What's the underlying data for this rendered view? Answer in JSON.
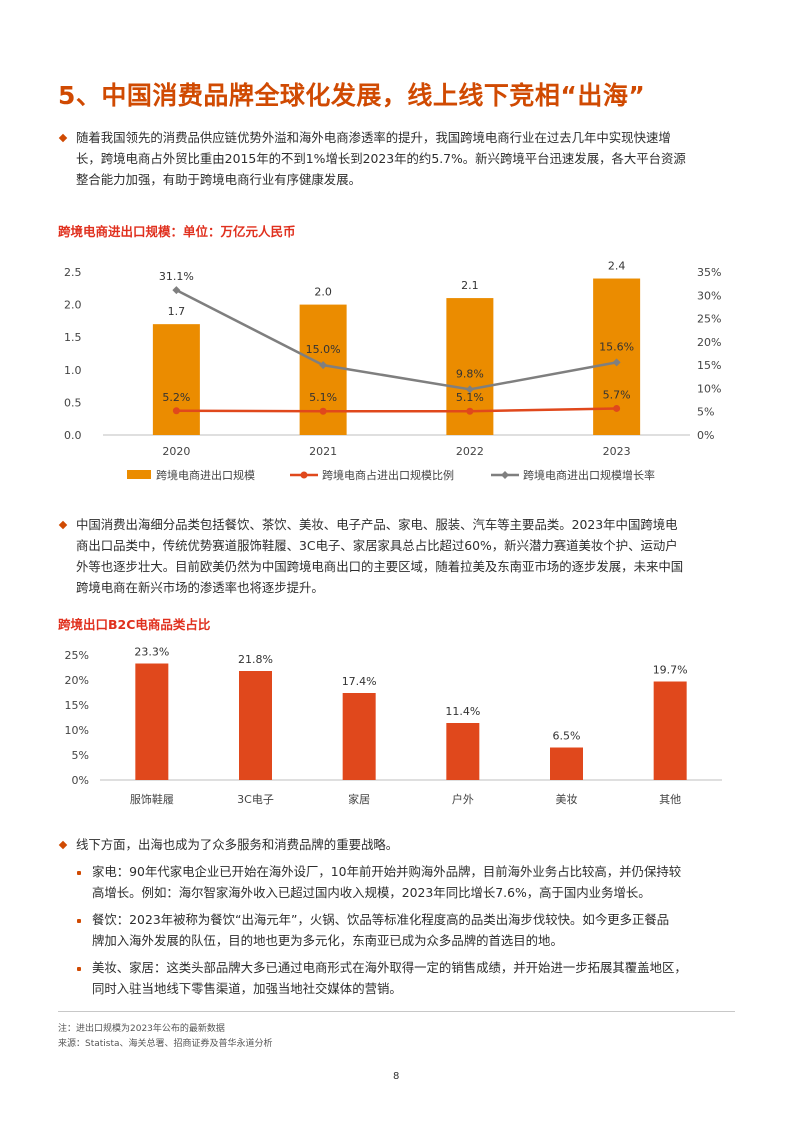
{
  "page": {
    "title": "5、中国消费品牌全球化发展，线上线下竞相“出海”",
    "page_number": "8"
  },
  "intro": {
    "lines": [
      "随着我国领先的消费品供应链优势外溢和海外电商渗透率的提升，我国跨境电商行业在过去几年中实现快速增",
      "长，跨境电商占外贸比重由2015年的不到1%增长到2023年的约5.7%。新兴跨境平台迅速发展，各大平台资源",
      "整合能力加强，有助于跨境电商行业有序健康发展。"
    ]
  },
  "chart1": {
    "title": "跨境电商进出口规模：单位：万亿元人民币"
  },
  "mid_paragraph": {
    "lines": [
      "中国消费出海细分品类包括餐饮、茶饮、美妆、电子产品、家电、服装、汽车等主要品类。2023年中国跨境电",
      "商出口品类中，传统优势赛道服饰鞋履、3C电子、家居家具总占比超过60%，新兴潜力赛道美妆个护、运动户",
      "外等也逐步壮大。目前欧美仍然为中国跨境电商出口的主要区域，随着拉美及东南亚市场的逐步发展，未来中国",
      "跨境电商在新兴市场的渗透率也将逐步提升。"
    ]
  },
  "chart2": {
    "title": "跨境出口B2C电商品类占比"
  },
  "offline": {
    "lead": "线下方面，出海也成为了众多服务和消费品牌的重要战略。",
    "items": [
      {
        "lines": [
          "家电：90年代家电企业已开始在海外设厂，10年前开始并购海外品牌，目前海外业务占比较高，并仍保持较",
          "高增长。例如：海尔智家海外收入已超过国内收入规模，2023年同比增长7.6%，高于国内业务增长。"
        ]
      },
      {
        "lines": [
          "餐饮：2023年被称为餐饮“出海元年”，火锅、饮品等标准化程度高的品类出海步伐较快。如今更多正餐品",
          "牌加入海外发展的队伍，目的地也更为多元化，东南亚已成为众多品牌的首选目的地。"
        ]
      },
      {
        "lines": [
          "美妆、家居：这类头部品牌大多已通过电商形式在海外取得一定的销售成绩，并开始进一步拓展其覆盖地区，",
          "同时入驻当地线下零售渠道，加强当地社交媒体的营销。"
        ]
      }
    ]
  },
  "footnotes": {
    "note": "注：进出口规模为2023年公布的最新数据",
    "source": "来源：Statista、海关总署、招商证券及普华永道分析"
  },
  "colors": {
    "accent": "#d04a02",
    "bar": "#eb8c00",
    "line_share": "#e0481c",
    "line_growth": "#7f7f7f"
  },
  "chart_data": [
    {
      "type": "bar",
      "categories": [
        "2020",
        "2021",
        "2022",
        "2023"
      ],
      "series": [
        {
          "name": "跨境电商进出口规模",
          "kind": "bar",
          "axis": "left",
          "values": [
            1.7,
            2.0,
            2.1,
            2.4
          ],
          "labels": [
            "1.7",
            "2.0",
            "2.1",
            "2.4"
          ]
        },
        {
          "name": "跨境电商占进出口规模比例",
          "kind": "line",
          "axis": "right",
          "values": [
            5.2,
            5.1,
            5.1,
            5.7
          ],
          "labels": [
            "5.2%",
            "5.1%",
            "5.1%",
            "5.7%"
          ]
        },
        {
          "name": "跨境电商进出口规模增长率",
          "kind": "line",
          "axis": "right",
          "values": [
            31.1,
            15.0,
            9.8,
            15.6
          ],
          "labels": [
            "31.1%",
            "15.0%",
            "9.8%",
            "15.6%"
          ]
        }
      ],
      "ylim": [
        0,
        2.5
      ],
      "yticks": [
        "0.0",
        "0.5",
        "1.0",
        "1.5",
        "2.0",
        "2.5"
      ],
      "y2lim": [
        0,
        35
      ],
      "y2ticks": [
        "0%",
        "5%",
        "10%",
        "15%",
        "20%",
        "25%",
        "30%",
        "35%"
      ],
      "legend": "bottom",
      "grid": false
    },
    {
      "type": "bar",
      "categories": [
        "服饰鞋履",
        "3C电子",
        "家居",
        "户外",
        "美妆",
        "其他"
      ],
      "values": [
        23.3,
        21.8,
        17.4,
        11.4,
        6.5,
        19.7
      ],
      "labels": [
        "23.3%",
        "21.8%",
        "17.4%",
        "11.4%",
        "6.5%",
        "19.7%"
      ],
      "ylim": [
        0,
        25
      ],
      "yticks": [
        "0%",
        "5%",
        "10%",
        "15%",
        "20%",
        "25%"
      ],
      "grid": false
    }
  ]
}
